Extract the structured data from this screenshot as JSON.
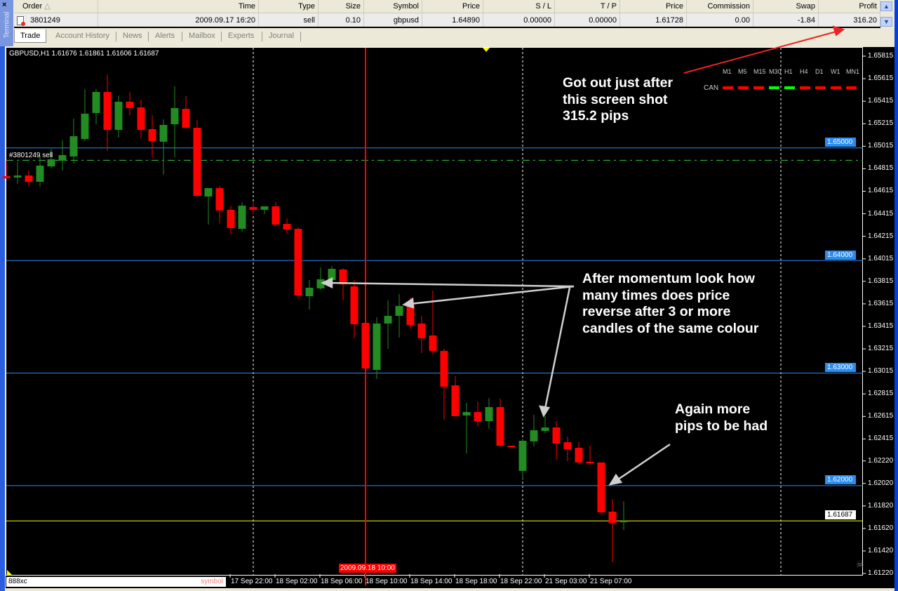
{
  "terminal": {
    "panel_label": "Terminal",
    "close_glyph": "×",
    "columns": [
      "Order",
      "Time",
      "Type",
      "Size",
      "Symbol",
      "Price",
      "S / L",
      "T / P",
      "Price",
      "Commission",
      "Swap",
      "Profit"
    ],
    "sort_glyph": "△",
    "row": {
      "order": "3801249",
      "time": "2009.09.17 16:20",
      "type": "sell",
      "size": "0.10",
      "symbol": "gbpusd",
      "price": "1.64890",
      "sl": "0.00000",
      "tp": "0.00000",
      "current_price": "1.61728",
      "commission": "0.00",
      "swap": "-1.84",
      "profit": "316.20"
    },
    "tabs": [
      "Trade",
      "Account History",
      "News",
      "Alerts",
      "Mailbox",
      "Experts",
      "Journal"
    ],
    "active_tab": "Trade"
  },
  "chart": {
    "title": "GBPUSD,H1  1.61676 1.61861 1.61606 1.61687",
    "order_label": "#3801249 sell",
    "symbol_box": "888xc",
    "symbol_hint": "symbol",
    "crosshair_time": "2009.09.18 10:00",
    "bid_label": "1.61687",
    "level_labels": [
      "1.65000",
      "1.64000",
      "1.63000",
      "1.62000"
    ],
    "timeframes": [
      "M1",
      "M5",
      "M15",
      "M30",
      "H1",
      "H4",
      "D1",
      "W1",
      "MN1"
    ],
    "indicator_name": "CAN",
    "indicator_states": [
      "red",
      "red",
      "red",
      "green",
      "green",
      "red",
      "red",
      "red",
      "red"
    ],
    "annotations": {
      "top": [
        "Got out just after",
        "this screen shot",
        "315.2 pips"
      ],
      "middle": [
        "After momentum look how",
        "many times does price",
        "reverse after 3 or more",
        "candles of the same colour"
      ],
      "bottom": [
        "Again more",
        "pips to be had"
      ]
    },
    "colors": {
      "bull": "#228b22",
      "bear": "#ff0000",
      "level_line": "#2c8cf0",
      "bid_line": "#ffff00",
      "order_line": "#32cd32",
      "background": "#000000"
    }
  },
  "chart_data": {
    "type": "candlestick",
    "symbol": "GBPUSD",
    "timeframe": "H1",
    "price_ticks": [
      1.65815,
      1.65615,
      1.65415,
      1.65215,
      1.65015,
      1.64815,
      1.64615,
      1.64415,
      1.64215,
      1.64015,
      1.63815,
      1.63615,
      1.63415,
      1.63215,
      1.63015,
      1.62815,
      1.62615,
      1.62415,
      1.6222,
      1.6202,
      1.6182,
      1.6162,
      1.6142,
      1.6122
    ],
    "time_labels": [
      "17 Sep 22:00",
      "18 Sep 02:00",
      "18 Sep 06:00",
      "18 Sep 10:00",
      "18 Sep 14:00",
      "18 Sep 18:00",
      "18 Sep 22:00",
      "21 Sep 03:00",
      "21 Sep 07:00"
    ],
    "ylim": [
      1.6122,
      1.6582
    ],
    "horizontal_levels": [
      1.65,
      1.64,
      1.63,
      1.62
    ],
    "order_open_price": 1.6489,
    "bid": 1.61687,
    "ohlc": [
      [
        1.64749,
        1.64892,
        1.64724,
        1.6473
      ],
      [
        1.64737,
        1.64874,
        1.6468,
        1.64755
      ],
      [
        1.64755,
        1.64799,
        1.64662,
        1.64699
      ],
      [
        1.64699,
        1.6493,
        1.64656,
        1.64843
      ],
      [
        1.64836,
        1.64992,
        1.64818,
        1.64899
      ],
      [
        1.64886,
        1.65067,
        1.64799,
        1.64936
      ],
      [
        1.64924,
        1.6526,
        1.64861,
        1.65104
      ],
      [
        1.65079,
        1.65522,
        1.65061,
        1.65304
      ],
      [
        1.6531,
        1.65522,
        1.6521,
        1.65497
      ],
      [
        1.65497,
        1.65653,
        1.64973,
        1.6516
      ],
      [
        1.6516,
        1.65466,
        1.65092,
        1.6541
      ],
      [
        1.6541,
        1.65497,
        1.65291,
        1.65354
      ],
      [
        1.6536,
        1.65429,
        1.65086,
        1.6516
      ],
      [
        1.65167,
        1.65291,
        1.64917,
        1.65061
      ],
      [
        1.65055,
        1.65254,
        1.64762,
        1.65204
      ],
      [
        1.6521,
        1.65547,
        1.64917,
        1.65354
      ],
      [
        1.65347,
        1.6546,
        1.65167,
        1.65179
      ],
      [
        1.65179,
        1.65248,
        1.64562,
        1.64574
      ],
      [
        1.64568,
        1.64643,
        1.64319,
        1.64643
      ],
      [
        1.64643,
        1.64662,
        1.64331,
        1.64444
      ],
      [
        1.6445,
        1.64487,
        1.64232,
        1.64288
      ],
      [
        1.64281,
        1.64518,
        1.64257,
        1.64487
      ],
      [
        1.64475,
        1.64518,
        1.64406,
        1.6445
      ],
      [
        1.6445,
        1.64481,
        1.64412,
        1.64481
      ],
      [
        1.64481,
        1.64518,
        1.64313,
        1.64319
      ],
      [
        1.64325,
        1.64375,
        1.64238,
        1.64275
      ],
      [
        1.64281,
        1.64294,
        1.63658,
        1.63689
      ],
      [
        1.63683,
        1.63826,
        1.63565,
        1.63758
      ],
      [
        1.63752,
        1.63939,
        1.63739,
        1.63833
      ],
      [
        1.63826,
        1.63951,
        1.63826,
        1.63926
      ],
      [
        1.6392,
        1.63932,
        1.63646,
        1.63789
      ],
      [
        1.6377,
        1.63826,
        1.63309,
        1.63434
      ],
      [
        1.63446,
        1.63477,
        1.6301,
        1.63041
      ],
      [
        1.63028,
        1.63496,
        1.62947,
        1.6344
      ],
      [
        1.6344,
        1.63646,
        1.63215,
        1.63508
      ],
      [
        1.63508,
        1.63702,
        1.63315,
        1.63596
      ],
      [
        1.63614,
        1.6367,
        1.63396,
        1.63427
      ],
      [
        1.6344,
        1.63508,
        1.63178,
        1.63309
      ],
      [
        1.63334,
        1.63733,
        1.63166,
        1.63197
      ],
      [
        1.63197,
        1.63215,
        1.62586,
        1.62879
      ],
      [
        1.62891,
        1.62972,
        1.62617,
        1.62617
      ],
      [
        1.62623,
        1.62735,
        1.62287,
        1.62654
      ],
      [
        1.62654,
        1.62748,
        1.62523,
        1.62573
      ],
      [
        1.62573,
        1.62779,
        1.62505,
        1.62698
      ],
      [
        1.62698,
        1.62773,
        1.62349,
        1.62355
      ],
      [
        1.62355,
        1.62355,
        1.62349,
        1.62352
      ],
      [
        1.62131,
        1.62418,
        1.62062,
        1.62399
      ],
      [
        1.62393,
        1.62629,
        1.62349,
        1.62492
      ],
      [
        1.62486,
        1.62617,
        1.62467,
        1.62517
      ],
      [
        1.62517,
        1.62573,
        1.6223,
        1.62374
      ],
      [
        1.62386,
        1.62436,
        1.62218,
        1.62324
      ],
      [
        1.62336,
        1.62386,
        1.62193,
        1.62206
      ],
      [
        1.62212,
        1.62355,
        1.62181,
        1.62199
      ],
      [
        1.62206,
        1.62206,
        1.61744,
        1.61763
      ],
      [
        1.61769,
        1.61881,
        1.6132,
        1.61669
      ],
      [
        1.61676,
        1.61861,
        1.61606,
        1.61687
      ]
    ]
  }
}
